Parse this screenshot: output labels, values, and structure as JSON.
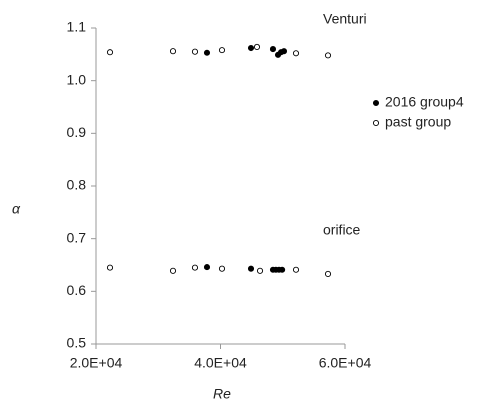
{
  "chart_data": {
    "type": "scatter",
    "xlabel": "Re",
    "ylabel": "α",
    "xlim": [
      20000,
      60000
    ],
    "ylim": [
      0.5,
      1.1
    ],
    "xticks": [
      {
        "value": 20000,
        "label": "2.0E+04"
      },
      {
        "value": 40000,
        "label": "4.0E+04"
      },
      {
        "value": 60000,
        "label": "6.0E+04"
      }
    ],
    "yticks": [
      0.5,
      0.6,
      0.7,
      0.8,
      0.9,
      {
        "value": 1,
        "label": "1.0"
      },
      1.1
    ],
    "grid": false,
    "legend": "right",
    "annotations": [
      "Venturi",
      "orifice"
    ],
    "series": [
      {
        "name": "2016 group4",
        "color": "#000000",
        "filled": true,
        "x": [
          37830,
          44900,
          48430,
          49240,
          49720,
          50200,
          37830,
          44900,
          48430,
          48900,
          49400,
          49900
        ],
        "values": [
          1.053,
          1.062,
          1.06,
          1.049,
          1.054,
          1.056,
          0.646,
          0.643,
          0.641,
          0.641,
          0.641,
          0.641
        ]
      },
      {
        "name": "past group",
        "color": "#000000",
        "filled": false,
        "x": [
          22250,
          32370,
          35900,
          40240,
          45860,
          52130,
          57270,
          22250,
          32370,
          35900,
          40240,
          46350,
          52130,
          57270
        ],
        "values": [
          1.054,
          1.056,
          1.055,
          1.058,
          1.064,
          1.052,
          1.048,
          0.645,
          0.639,
          0.645,
          0.643,
          0.639,
          0.641,
          0.633
        ]
      }
    ]
  }
}
